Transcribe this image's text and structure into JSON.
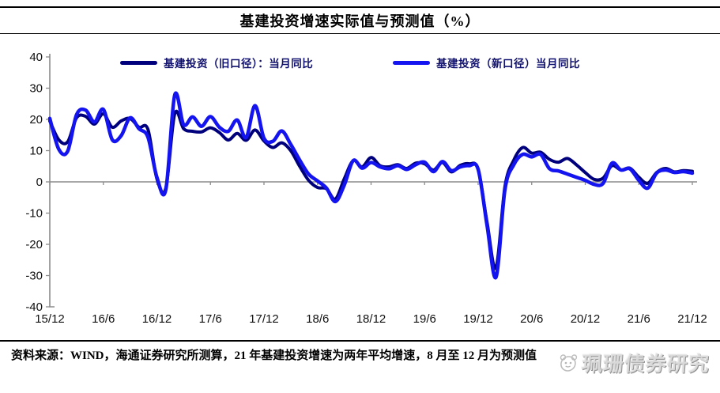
{
  "title": "基建投资增速实际值与预测值（%）",
  "legend": [
    {
      "label": "基建投资（旧口径）：当月同比",
      "color": "#00007c"
    },
    {
      "label": "基建投资（新口径）当月同比",
      "color": "#1414f0"
    }
  ],
  "footer": {
    "source_note": "资料来源：WIND，海通证券研究所测算，21 年基建投资增速为两年平均增速，8 月至 12 月为预测值"
  },
  "watermark": {
    "text": "珮珊债券研究",
    "logo_icon": "mascot-face-icon"
  },
  "axis_colors": {
    "axis": "#8c8c8c",
    "label": "#111111"
  },
  "chart_data": {
    "type": "line",
    "title": "基建投资增速实际值与预测值（%）",
    "xlabel": "",
    "ylabel": "",
    "ylim": [
      -40,
      40
    ],
    "y_ticks": [
      40,
      30,
      20,
      10,
      0,
      -10,
      -20,
      -30,
      -40
    ],
    "grid": false,
    "legend_position": "top",
    "x_tick_labels": [
      "15/12",
      "16/6",
      "16/12",
      "17/6",
      "17/12",
      "18/6",
      "18/12",
      "19/6",
      "19/12",
      "20/6",
      "20/12",
      "21/6",
      "21/12"
    ],
    "x": [
      "15/12",
      "16/1",
      "16/2",
      "16/3",
      "16/4",
      "16/5",
      "16/6",
      "16/7",
      "16/8",
      "16/9",
      "16/10",
      "16/11",
      "16/12",
      "17/1",
      "17/2",
      "17/3",
      "17/4",
      "17/5",
      "17/6",
      "17/7",
      "17/8",
      "17/9",
      "17/10",
      "17/11",
      "17/12",
      "18/1",
      "18/2",
      "18/3",
      "18/4",
      "18/5",
      "18/6",
      "18/7",
      "18/8",
      "18/9",
      "18/10",
      "18/11",
      "18/12",
      "19/1",
      "19/2",
      "19/3",
      "19/4",
      "19/5",
      "19/6",
      "19/7",
      "19/8",
      "19/9",
      "19/10",
      "19/11",
      "19/12",
      "20/1",
      "20/2",
      "20/3",
      "20/4",
      "20/5",
      "20/6",
      "20/7",
      "20/8",
      "20/9",
      "20/10",
      "20/11",
      "20/12",
      "21/1",
      "21/2",
      "21/3",
      "21/4",
      "21/5",
      "21/6",
      "21/7",
      "21/8",
      "21/9",
      "21/10",
      "21/11",
      "21/12"
    ],
    "series": [
      {
        "name": "基建投资（旧口径）：当月同比",
        "color": "#00007c",
        "stroke_width": 4,
        "values": [
          19.5,
          13.5,
          12.8,
          20.5,
          21,
          18.5,
          21.8,
          17.5,
          19.5,
          20.3,
          17.5,
          16.8,
          1,
          -2,
          21.8,
          17,
          16.2,
          16,
          17.3,
          15.8,
          13.4,
          15.5,
          13.3,
          16.6,
          13.1,
          11,
          12.5,
          10,
          5,
          0.5,
          -1.8,
          -2.2,
          -5.5,
          1,
          6.8,
          4.8,
          7.8,
          5.2,
          4.8,
          5.5,
          4.3,
          6,
          5.8,
          3.8,
          6.2,
          3.2,
          5.3,
          5.8,
          4,
          -13,
          -27.5,
          -1.5,
          7,
          11,
          9.2,
          9.5,
          7.2,
          6.3,
          7.5,
          5.5,
          3,
          0.8,
          1.2,
          5.2,
          3.8,
          4.4,
          1.5,
          -0.5,
          3,
          4.3,
          3.2,
          3.6,
          3.4
        ]
      },
      {
        "name": "基建投资（新口径）当月同比",
        "color": "#1414f0",
        "stroke_width": 4.5,
        "values": [
          20.3,
          10.5,
          9.8,
          21.5,
          23,
          19.2,
          23.2,
          13.5,
          14.8,
          20.5,
          17,
          14.3,
          1.5,
          -2.5,
          27.8,
          18.3,
          20.8,
          17.8,
          20.9,
          17.5,
          16.2,
          19.8,
          14.2,
          24.4,
          14,
          13,
          16.3,
          12,
          7,
          2.5,
          0.3,
          -2,
          -6.3,
          -1,
          6.8,
          4.4,
          6.2,
          4.8,
          4.2,
          5.2,
          4,
          5.5,
          6.3,
          3.3,
          6.5,
          3.6,
          4.8,
          5.2,
          4,
          -14,
          -30.5,
          -2.5,
          5.5,
          8.8,
          8,
          8.8,
          4.2,
          3.5,
          2.5,
          1.5,
          0.5,
          -0.8,
          -0.5,
          6,
          3.8,
          4.2,
          0.5,
          -2,
          2.8,
          3.8,
          3,
          3.3,
          2.8
        ]
      }
    ]
  }
}
